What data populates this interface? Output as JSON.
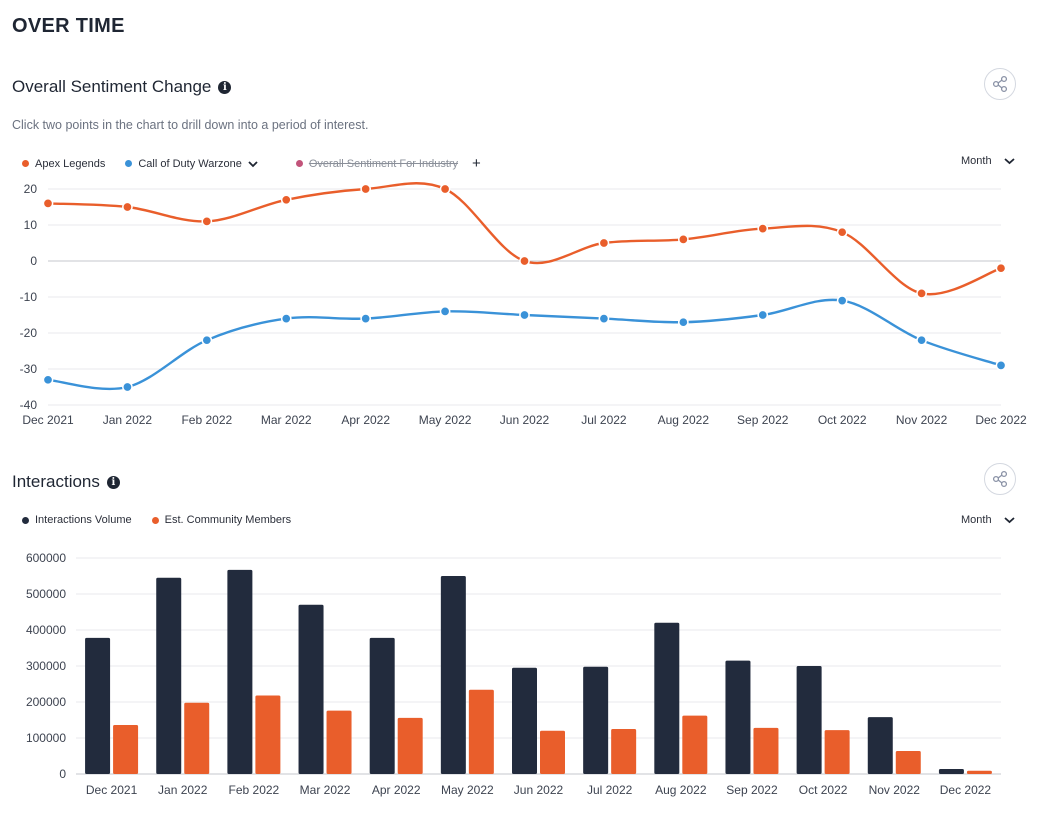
{
  "page_title": "OVER TIME",
  "sentiment": {
    "title": "Overall Sentiment Change",
    "subtitle": "Click two points in the chart to drill down into a period of interest.",
    "legend": [
      {
        "label": "Apex Legends",
        "color": "#e95e2b"
      },
      {
        "label": "Call of Duty Warzone",
        "color": "#3a92d8"
      },
      {
        "label": "Overall Sentiment For Industry",
        "color": "#c2547a",
        "disabled": true
      }
    ],
    "period_label": "Month"
  },
  "interactions": {
    "title": "Interactions",
    "legend": [
      {
        "label": "Interactions Volume",
        "color": "#222b3d"
      },
      {
        "label": "Est. Community Members",
        "color": "#e95e2b"
      }
    ],
    "period_label": "Month"
  },
  "chart_data": [
    {
      "type": "line",
      "categories": [
        "Dec 2021",
        "Jan 2022",
        "Feb 2022",
        "Mar 2022",
        "Apr 2022",
        "May 2022",
        "Jun 2022",
        "Jul 2022",
        "Aug 2022",
        "Sep 2022",
        "Oct 2022",
        "Nov 2022",
        "Dec 2022"
      ],
      "series": [
        {
          "name": "Apex Legends",
          "color": "#e95e2b",
          "values": [
            16,
            15,
            11,
            17,
            20,
            20,
            0,
            5,
            6,
            9,
            8,
            -9,
            -2
          ]
        },
        {
          "name": "Call of Duty Warzone",
          "color": "#3a92d8",
          "values": [
            -33,
            -35,
            -22,
            -16,
            -16,
            -14,
            -15,
            -16,
            -17,
            -15,
            -11,
            -22,
            -29
          ]
        }
      ],
      "ylim": [
        -40,
        20
      ],
      "yticks": [
        20,
        10,
        0,
        -10,
        -20,
        -30,
        -40
      ],
      "ytick_labels": [
        "20",
        "10",
        "0",
        "-10",
        "-20",
        "-30",
        "-40"
      ],
      "grid": true
    },
    {
      "type": "bar",
      "categories": [
        "Dec 2021",
        "Jan 2022",
        "Feb 2022",
        "Mar 2022",
        "Apr 2022",
        "May 2022",
        "Jun 2022",
        "Jul 2022",
        "Aug 2022",
        "Sep 2022",
        "Oct 2022",
        "Nov 2022",
        "Dec 2022"
      ],
      "series": [
        {
          "name": "Interactions Volume",
          "color": "#222b3d",
          "values": [
            378000,
            545000,
            567000,
            470000,
            378000,
            550000,
            295000,
            298000,
            420000,
            315000,
            300000,
            158000,
            14000
          ]
        },
        {
          "name": "Est. Community Members",
          "color": "#e95e2b",
          "values": [
            136000,
            198000,
            218000,
            176000,
            156000,
            234000,
            120000,
            125000,
            162000,
            128000,
            122000,
            64000,
            9000
          ]
        }
      ],
      "ylim": [
        0,
        600000
      ],
      "yticks": [
        0,
        100000,
        200000,
        300000,
        400000,
        500000,
        600000
      ],
      "ytick_labels": [
        "0",
        "100000",
        "200000",
        "300000",
        "400000",
        "500000",
        "600000"
      ],
      "grid": true
    }
  ]
}
